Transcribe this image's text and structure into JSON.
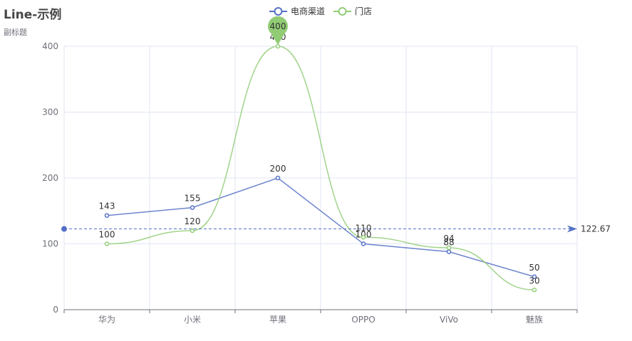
{
  "title": "Line-示例",
  "subtitle": "副标题",
  "chart_data": {
    "type": "line",
    "categories": [
      "华为",
      "小米",
      "苹果",
      "OPPO",
      "ViVo",
      "魅族"
    ],
    "series": [
      {
        "name": "电商渠道",
        "values": [
          143,
          155,
          200,
          100,
          88,
          50
        ],
        "color": "#5470c6",
        "smooth": false
      },
      {
        "name": "门店",
        "values": [
          100,
          120,
          400,
          110,
          94,
          30
        ],
        "color": "#91cc75",
        "smooth": true
      }
    ],
    "ylim": [
      0,
      400
    ],
    "yticks": [
      0,
      100,
      200,
      300,
      400
    ],
    "grid": true,
    "legend_position": "top-center",
    "markPoint": {
      "series": "门店",
      "category": "苹果",
      "value": 400,
      "label": "400"
    },
    "markLine": {
      "series": "电商渠道",
      "value": 122.67,
      "label": "122.67"
    }
  }
}
